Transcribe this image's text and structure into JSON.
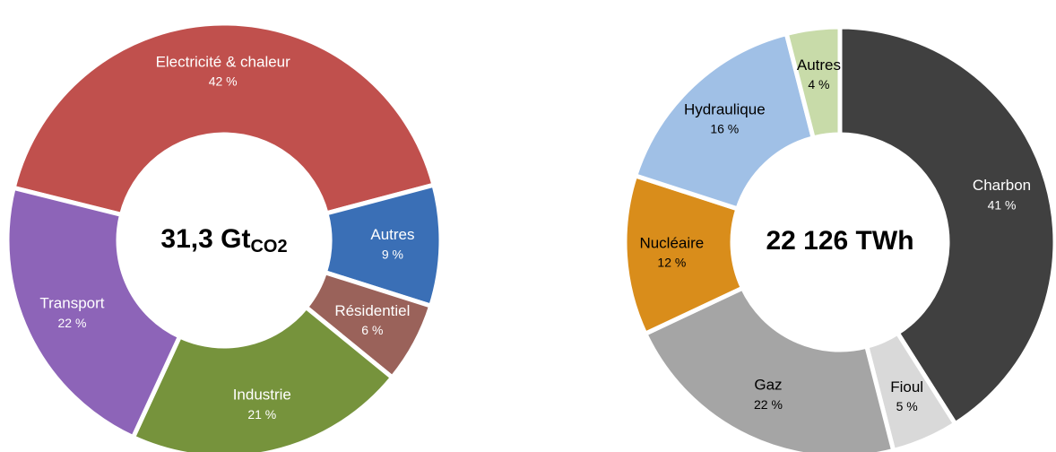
{
  "chart_data": [
    {
      "type": "donut",
      "center_label": "31,3 Gt",
      "center_label_sub": "CO2",
      "categories": [
        "Electricité & chaleur",
        "Autres",
        "Résidentiel",
        "Industrie",
        "Transport"
      ],
      "values": [
        42,
        9,
        6,
        21,
        22
      ],
      "value_labels": [
        "42 %",
        "9 %",
        "6 %",
        "21 %",
        "22 %"
      ],
      "colors": [
        "#c0504d",
        "#3a6fb6",
        "#9a625a",
        "#76933c",
        "#8d64b8"
      ],
      "label_colors": [
        "#ffffff",
        "#ffffff",
        "#ffffff",
        "#ffffff",
        "#ffffff"
      ]
    },
    {
      "type": "donut",
      "center_label": "22 126 TWh",
      "categories": [
        "Charbon",
        "Fioul",
        "Gaz",
        "Nucléaire",
        "Hydraulique",
        "Autres"
      ],
      "values": [
        41,
        5,
        22,
        12,
        16,
        4
      ],
      "value_labels": [
        "41 %",
        "5 %",
        "22 %",
        "12 %",
        "16 %",
        "4 %"
      ],
      "colors": [
        "#404040",
        "#d9d9d9",
        "#a5a5a5",
        "#d98d1b",
        "#a0c0e6",
        "#c8dba9"
      ],
      "label_colors": [
        "#ffffff",
        "#000000",
        "#000000",
        "#000000",
        "#000000",
        "#000000"
      ]
    }
  ]
}
